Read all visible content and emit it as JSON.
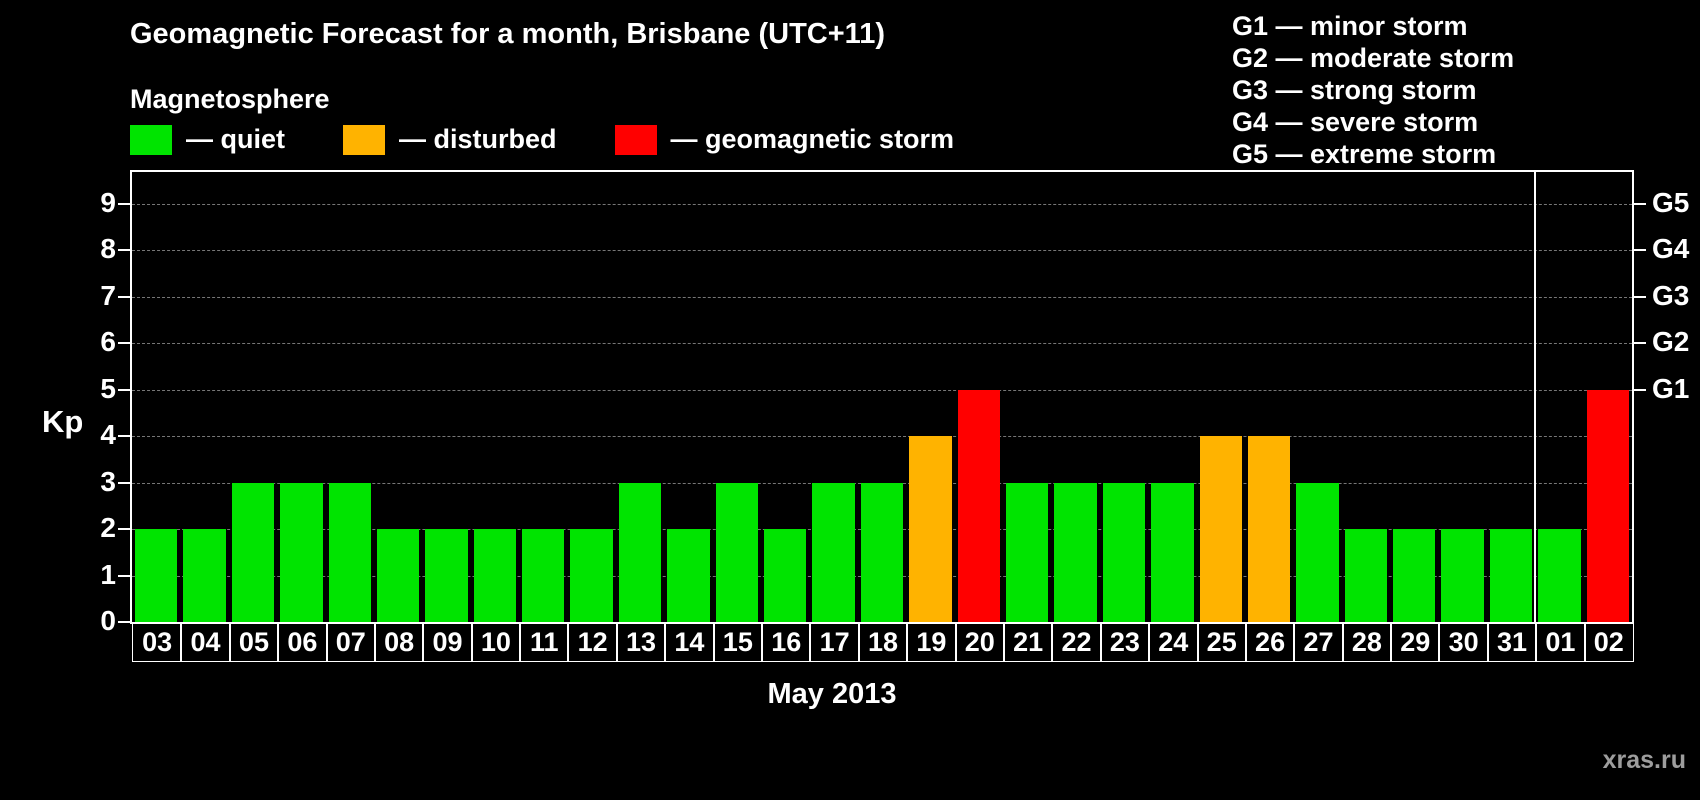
{
  "header": {
    "title": "Geomagnetic Forecast for a month, Brisbane (UTC+11)",
    "subtitle": "Magnetosphere"
  },
  "legend": {
    "items": [
      {
        "label": "— quiet",
        "color": "#00e400"
      },
      {
        "label": "— disturbed",
        "color": "#ffb300"
      },
      {
        "label": "— geomagnetic storm",
        "color": "#ff0000"
      }
    ]
  },
  "g_legend": {
    "items": [
      "G1 — minor storm",
      "G2 — moderate storm",
      "G3 — strong storm",
      "G4 — severe storm",
      "G5 — extreme storm"
    ]
  },
  "chart_data": {
    "type": "bar",
    "title": "Geomagnetic Forecast for a month, Brisbane (UTC+11)",
    "xlabel": "May 2013",
    "ylabel": "Kp",
    "ylim": [
      0,
      9.6
    ],
    "yticks": [
      0,
      1,
      2,
      3,
      4,
      5,
      6,
      7,
      8,
      9
    ],
    "right_axis": [
      {
        "kp": 5,
        "label": "G1"
      },
      {
        "kp": 6,
        "label": "G2"
      },
      {
        "kp": 7,
        "label": "G3"
      },
      {
        "kp": 8,
        "label": "G4"
      },
      {
        "kp": 9,
        "label": "G5"
      }
    ],
    "status_colors": {
      "quiet": "#00e400",
      "disturbed": "#ffb300",
      "storm": "#ff0000"
    },
    "month_separator_index": 29,
    "bars": [
      {
        "day": "03",
        "kp": 2,
        "status": "quiet"
      },
      {
        "day": "04",
        "kp": 2,
        "status": "quiet"
      },
      {
        "day": "05",
        "kp": 3,
        "status": "quiet"
      },
      {
        "day": "06",
        "kp": 3,
        "status": "quiet"
      },
      {
        "day": "07",
        "kp": 3,
        "status": "quiet"
      },
      {
        "day": "08",
        "kp": 2,
        "status": "quiet"
      },
      {
        "day": "09",
        "kp": 2,
        "status": "quiet"
      },
      {
        "day": "10",
        "kp": 2,
        "status": "quiet"
      },
      {
        "day": "11",
        "kp": 2,
        "status": "quiet"
      },
      {
        "day": "12",
        "kp": 2,
        "status": "quiet"
      },
      {
        "day": "13",
        "kp": 3,
        "status": "quiet"
      },
      {
        "day": "14",
        "kp": 2,
        "status": "quiet"
      },
      {
        "day": "15",
        "kp": 3,
        "status": "quiet"
      },
      {
        "day": "16",
        "kp": 2,
        "status": "quiet"
      },
      {
        "day": "17",
        "kp": 3,
        "status": "quiet"
      },
      {
        "day": "18",
        "kp": 3,
        "status": "quiet"
      },
      {
        "day": "19",
        "kp": 4,
        "status": "disturbed"
      },
      {
        "day": "20",
        "kp": 5,
        "status": "storm"
      },
      {
        "day": "21",
        "kp": 3,
        "status": "quiet"
      },
      {
        "day": "22",
        "kp": 3,
        "status": "quiet"
      },
      {
        "day": "23",
        "kp": 3,
        "status": "quiet"
      },
      {
        "day": "24",
        "kp": 3,
        "status": "quiet"
      },
      {
        "day": "25",
        "kp": 4,
        "status": "disturbed"
      },
      {
        "day": "26",
        "kp": 4,
        "status": "disturbed"
      },
      {
        "day": "27",
        "kp": 3,
        "status": "quiet"
      },
      {
        "day": "28",
        "kp": 2,
        "status": "quiet"
      },
      {
        "day": "29",
        "kp": 2,
        "status": "quiet"
      },
      {
        "day": "30",
        "kp": 2,
        "status": "quiet"
      },
      {
        "day": "31",
        "kp": 2,
        "status": "quiet"
      },
      {
        "day": "01",
        "kp": 2,
        "status": "quiet"
      },
      {
        "day": "02",
        "kp": 5,
        "status": "storm"
      }
    ]
  },
  "footer": {
    "watermark": "xras.ru"
  }
}
